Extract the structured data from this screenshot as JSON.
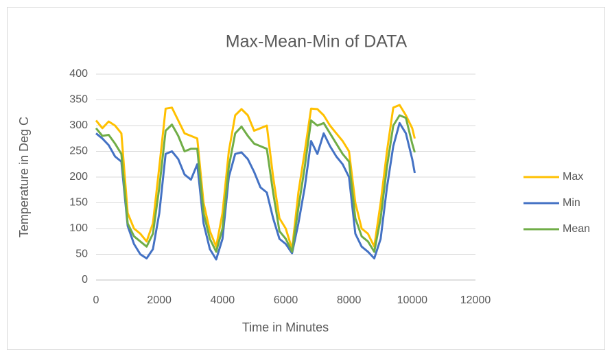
{
  "chart_data": {
    "type": "line",
    "title": "Max-Mean-Min of DATA",
    "x_label": "Time in Minutes",
    "y_label": "Temperature in Deg C",
    "x": [
      0,
      200,
      400,
      600,
      800,
      1000,
      1200,
      1400,
      1600,
      1800,
      2000,
      2200,
      2400,
      2600,
      2800,
      3000,
      3200,
      3400,
      3600,
      3800,
      4000,
      4200,
      4400,
      4600,
      4800,
      5000,
      5200,
      5400,
      5600,
      5800,
      6000,
      6200,
      6400,
      6600,
      6800,
      7000,
      7200,
      7400,
      7600,
      7800,
      8000,
      8200,
      8400,
      8600,
      8800,
      9000,
      9200,
      9400,
      9600,
      9800,
      10000,
      10080
    ],
    "series": [
      {
        "name": "Max",
        "color": "#ffc000",
        "values": [
          310,
          295,
          308,
          300,
          285,
          130,
          100,
          90,
          75,
          110,
          220,
          333,
          335,
          310,
          285,
          280,
          275,
          150,
          95,
          65,
          130,
          250,
          320,
          332,
          320,
          290,
          295,
          300,
          200,
          120,
          100,
          60,
          170,
          250,
          333,
          332,
          320,
          300,
          285,
          270,
          250,
          150,
          100,
          90,
          65,
          150,
          250,
          335,
          340,
          320,
          295,
          275
        ]
      },
      {
        "name": "Min",
        "color": "#4472c4",
        "values": [
          285,
          275,
          262,
          240,
          230,
          105,
          70,
          50,
          42,
          60,
          130,
          245,
          250,
          235,
          205,
          195,
          225,
          110,
          60,
          40,
          80,
          200,
          245,
          248,
          235,
          210,
          180,
          170,
          120,
          80,
          70,
          52,
          110,
          180,
          270,
          245,
          285,
          260,
          240,
          225,
          200,
          90,
          65,
          55,
          42,
          80,
          180,
          260,
          305,
          285,
          235,
          208
        ]
      },
      {
        "name": "Mean",
        "color": "#70ad47",
        "values": [
          295,
          280,
          282,
          265,
          245,
          110,
          85,
          75,
          65,
          90,
          180,
          290,
          302,
          280,
          250,
          255,
          255,
          130,
          80,
          55,
          100,
          220,
          285,
          298,
          280,
          265,
          260,
          255,
          170,
          95,
          80,
          55,
          140,
          220,
          310,
          300,
          305,
          285,
          265,
          245,
          230,
          120,
          85,
          75,
          55,
          120,
          220,
          300,
          320,
          315,
          265,
          248
        ]
      }
    ],
    "xlim": [
      0,
      12000
    ],
    "xticks": [
      0,
      2000,
      4000,
      6000,
      8000,
      10000,
      12000
    ],
    "ylim": [
      0,
      400
    ],
    "yticks": [
      0,
      50,
      100,
      150,
      200,
      250,
      300,
      350,
      400
    ],
    "grid": true,
    "legend": "right"
  }
}
